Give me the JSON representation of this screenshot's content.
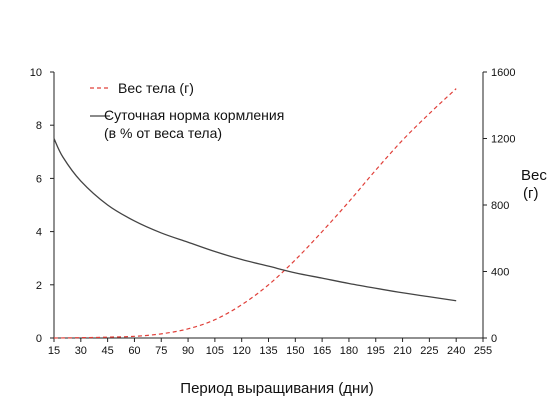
{
  "chart_data": {
    "type": "line",
    "title": "",
    "xlabel": "Период выращивания (дни)",
    "ylabel_left": "",
    "ylabel_right_lines": [
      "Вес",
      "(г)"
    ],
    "x_ticks": [
      15,
      30,
      45,
      60,
      75,
      90,
      105,
      120,
      135,
      150,
      165,
      180,
      195,
      210,
      225,
      240,
      255
    ],
    "xlim": [
      15,
      255
    ],
    "ylim_left": [
      0,
      10
    ],
    "yticks_left": [
      0,
      2,
      4,
      6,
      8,
      10
    ],
    "ylim_right": [
      0,
      1600
    ],
    "yticks_right": [
      0,
      400,
      800,
      1200,
      1600
    ],
    "grid": false,
    "legend_placement": "top-left",
    "series": [
      {
        "name": "Вес тела (г)",
        "axis": "right",
        "color": "#e0403a",
        "style": "dashed",
        "x": [
          15,
          30,
          45,
          60,
          75,
          90,
          105,
          120,
          135,
          150,
          165,
          180,
          195,
          210,
          225,
          240
        ],
        "values": [
          0,
          2,
          5,
          10,
          25,
          55,
          110,
          200,
          320,
          470,
          640,
          820,
          1010,
          1190,
          1350,
          1500
        ]
      },
      {
        "name_lines": [
          "Суточная норма кормления",
          "(в % от веса тела)"
        ],
        "axis": "left",
        "color": "#444444",
        "style": "solid",
        "x": [
          15,
          20,
          30,
          45,
          60,
          75,
          90,
          105,
          120,
          135,
          150,
          165,
          180,
          195,
          210,
          225,
          240
        ],
        "values": [
          7.5,
          6.8,
          5.9,
          5.0,
          4.4,
          3.95,
          3.6,
          3.25,
          2.95,
          2.7,
          2.45,
          2.25,
          2.05,
          1.87,
          1.7,
          1.55,
          1.4
        ]
      }
    ]
  }
}
